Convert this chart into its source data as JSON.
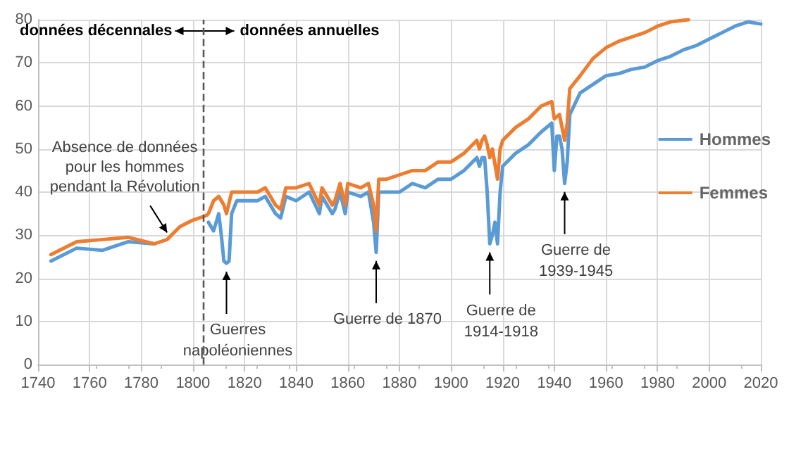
{
  "chart_data": {
    "type": "line",
    "xlim": [
      1740,
      2020
    ],
    "xticks": [
      1740,
      1760,
      1780,
      1800,
      1820,
      1840,
      1860,
      1880,
      1900,
      1920,
      1940,
      1960,
      1980,
      2000,
      2020
    ],
    "ylim": [
      0,
      80
    ],
    "yticks": [
      0,
      10,
      20,
      30,
      40,
      50,
      60,
      70,
      80
    ],
    "grid": true,
    "legend": "right",
    "marker": "none",
    "line_style": "solid",
    "series": [
      {
        "name": "Hommes",
        "color": "#5b9bd5",
        "x": [
          1745,
          1755,
          1765,
          1775,
          1785,
          1795,
          1806,
          1808,
          1810,
          1811,
          1812,
          1813,
          1814,
          1815,
          1817,
          1820,
          1825,
          1828,
          1832,
          1834,
          1836,
          1840,
          1845,
          1849,
          1850,
          1854,
          1855,
          1857,
          1859,
          1860,
          1865,
          1868,
          1870,
          1871,
          1872,
          1875,
          1880,
          1885,
          1890,
          1895,
          1900,
          1905,
          1910,
          1911,
          1912,
          1913,
          1914,
          1915,
          1916,
          1917,
          1918,
          1919,
          1920,
          1925,
          1930,
          1935,
          1939,
          1940,
          1941,
          1942,
          1943,
          1944,
          1945,
          1946,
          1950,
          1955,
          1960,
          1965,
          1970,
          1975,
          1980,
          1985,
          1990,
          1995,
          2000,
          2005,
          2010,
          2015,
          2020
        ],
        "values": [
          24,
          27,
          26.5,
          28.5,
          28,
          null,
          33,
          31,
          35,
          30,
          24,
          23.5,
          24,
          35,
          38,
          38,
          38,
          39,
          35,
          34,
          39,
          38,
          40,
          35,
          39,
          35,
          36,
          40,
          35,
          40,
          39,
          40,
          33,
          26,
          40,
          40,
          40,
          42,
          41,
          43,
          43,
          45,
          48,
          46,
          48,
          48,
          40,
          28,
          30,
          33,
          28,
          40,
          46,
          49,
          51,
          54,
          56,
          45,
          53,
          53,
          50,
          42,
          47,
          58,
          63,
          65,
          67,
          67.5,
          68.5,
          69,
          70.5,
          71.5,
          73,
          74,
          75.5,
          77,
          78.5,
          79.5,
          79
        ]
      },
      {
        "name": "Femmes",
        "color": "#ed7d31",
        "x": [
          1745,
          1755,
          1765,
          1775,
          1785,
          1790,
          1795,
          1800,
          1805,
          1806,
          1808,
          1810,
          1812,
          1813,
          1815,
          1820,
          1825,
          1828,
          1832,
          1834,
          1836,
          1840,
          1845,
          1849,
          1850,
          1854,
          1855,
          1857,
          1859,
          1860,
          1865,
          1868,
          1870,
          1871,
          1872,
          1875,
          1880,
          1885,
          1890,
          1895,
          1900,
          1905,
          1910,
          1911,
          1912,
          1913,
          1914,
          1915,
          1916,
          1918,
          1919,
          1920,
          1925,
          1930,
          1935,
          1939,
          1940,
          1942,
          1944,
          1945,
          1946,
          1950,
          1955,
          1960,
          1965,
          1970,
          1975,
          1980,
          1985,
          1992
        ],
        "values": [
          25.5,
          28.5,
          29,
          29.5,
          28,
          29,
          32,
          33.5,
          34.5,
          35,
          38,
          39,
          37,
          35,
          40,
          40,
          40,
          41,
          37,
          36,
          41,
          41,
          42,
          37,
          41,
          37,
          38,
          42,
          37,
          42,
          41,
          42,
          37,
          31,
          43,
          43,
          44,
          45,
          45,
          47,
          47,
          49,
          52,
          50,
          52,
          53,
          51,
          48,
          50,
          43,
          50,
          52,
          55,
          57,
          60,
          61,
          57,
          58,
          52,
          56,
          64,
          67,
          71,
          73.5,
          75,
          76,
          77,
          78.5,
          79.5,
          80
        ]
      }
    ],
    "ref_lines": [
      {
        "axis": "x",
        "value": 1804,
        "line_style": "dashed",
        "color": "#595959"
      }
    ],
    "annotations": [
      "données décennales",
      "données annuelles",
      {
        "text": "Absence de données pour les hommes pendant la Révolution",
        "x": 1790,
        "y": 29
      },
      {
        "text": "Guerres napoléoniennes",
        "x": 1813,
        "y": 23.5
      },
      {
        "text": "Guerre de 1870",
        "x": 1871,
        "y": 26
      },
      {
        "text": "Guerre de 1914-1918",
        "x": 1915,
        "y": 28
      },
      {
        "text": "Guerre de 1939-1945",
        "x": 1944,
        "y": 42
      }
    ]
  }
}
